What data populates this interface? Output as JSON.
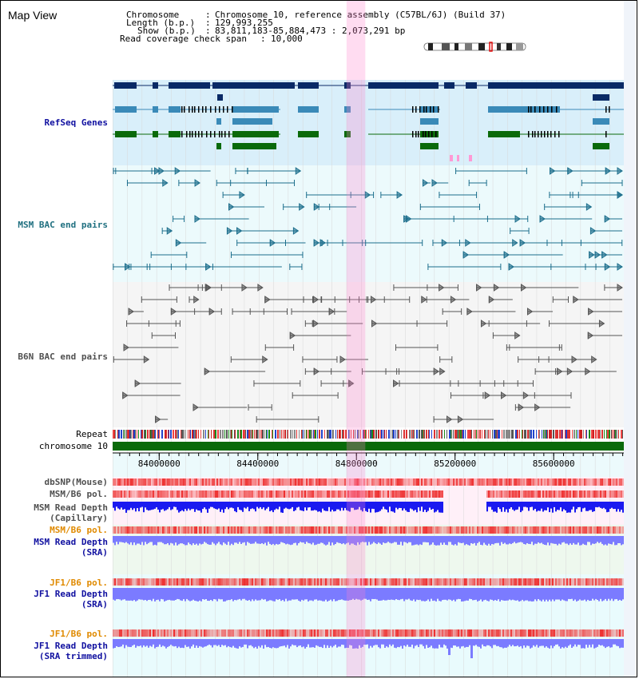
{
  "page": {
    "title": "Map View"
  },
  "info": {
    "rows": [
      {
        "label": "Chromosome",
        "value": "Chromosome 10, reference assembly (C57BL/6J) (Build 37)"
      },
      {
        "label": "Length (b.p.)",
        "value": "129,993,255"
      },
      {
        "label": "Show (b.p.)",
        "value": "83,811,183-85,884,473 : 2,073,291 bp"
      },
      {
        "label": "Read coverage check span",
        "value": "10,000"
      }
    ]
  },
  "view": {
    "start": 83811183,
    "end": 85884473,
    "highlight": [
      84760000,
      84836000
    ]
  },
  "tracks": {
    "refseq": {
      "label": "RefSeq Genes",
      "color": "#1010a0"
    },
    "msm_bac": {
      "label": "MSM BAC end pairs",
      "color": "#207080"
    },
    "b6n_bac": {
      "label": "B6N BAC end pairs",
      "color": "#505050"
    },
    "repeat": {
      "label": "Repeat"
    },
    "chrom": {
      "label": "chromosome 10"
    },
    "dbsnp": {
      "label": "dbSNP(Mouse)"
    },
    "msm_pol_cap": {
      "label": "MSM/B6 pol."
    },
    "msm_depth_cap": {
      "label1": "MSM Read Depth",
      "label2": "(Capillary)"
    },
    "msm_pol_sra": {
      "label": "MSM/B6 pol.",
      "color": "#e08a00"
    },
    "msm_depth_sra": {
      "label1": "MSM Read Depth",
      "label2": "(SRA)"
    },
    "jf1_pol_1": {
      "label": "JF1/B6 pol.",
      "color": "#e08a00"
    },
    "jf1_depth_sra": {
      "label1": "JF1 Read Depth",
      "label2": "(SRA)"
    },
    "jf1_pol_2": {
      "label": "JF1/B6 pol.",
      "color": "#e08a00"
    },
    "jf1_depth_trim": {
      "label1": "JF1 Read Depth",
      "label2": "(SRA trimmed)"
    }
  },
  "ruler": {
    "ticks": [
      84000000,
      84400000,
      84800000,
      85200000,
      85600000
    ],
    "tick_labels": [
      "84000000",
      "84400000",
      "84800000",
      "85200000",
      "85600000"
    ]
  },
  "colors": {
    "gene_navy": "#0a2a66",
    "gene_blue": "#3a8ab8",
    "gene_green": "#0a6a0a",
    "bac_teal": "#1c6e8c",
    "bac_gray": "#555555",
    "depth_blue": "#1a1af0",
    "depth_light": "#7b7bff",
    "pol_red": "#ee3030"
  }
}
